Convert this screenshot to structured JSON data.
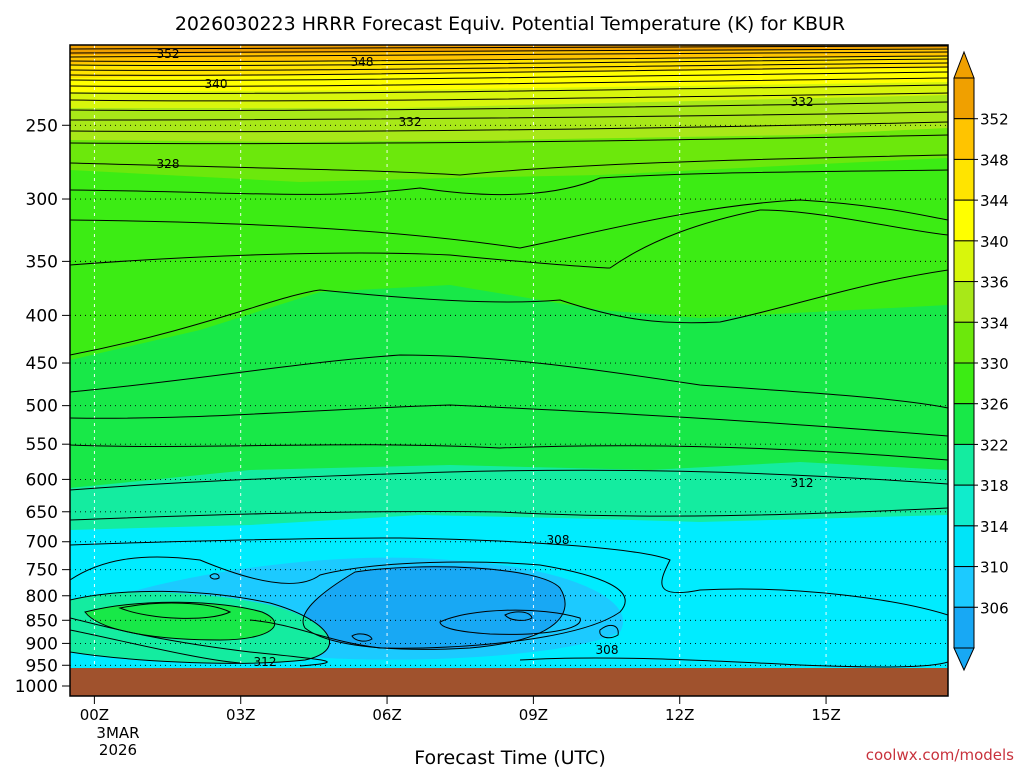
{
  "chart_data": {
    "type": "heatmap",
    "title": "2026030223 HRRR Forecast Equiv. Potential Temperature (K) for KBUR",
    "xlabel": "Forecast Time (UTC)",
    "ylabel": "",
    "x_ticks": [
      "00Z",
      "03Z",
      "06Z",
      "09Z",
      "12Z",
      "15Z"
    ],
    "x_tick_hours": [
      0,
      3,
      6,
      9,
      12,
      15
    ],
    "xlim": [
      -0.5,
      17.5
    ],
    "date_line1": "3MAR",
    "date_line2": "2026",
    "y_ticks": [
      250,
      300,
      350,
      400,
      450,
      500,
      550,
      600,
      650,
      700,
      750,
      800,
      850,
      900,
      950,
      1000
    ],
    "ylim": [
      1025,
      205
    ],
    "y_scale": "log-pressure",
    "surface_pressure": 975,
    "grid": true,
    "colorbar": {
      "labels": [
        "352",
        "348",
        "344",
        "340",
        "336",
        "334",
        "330",
        "326",
        "322",
        "318",
        "314",
        "310",
        "306"
      ],
      "colors": [
        "#f0a000",
        "#ffc400",
        "#ffe400",
        "#ffff00",
        "#d8f60c",
        "#a8e818",
        "#6ce80c",
        "#3cec14",
        "#18e848",
        "#14eca0",
        "#10eccc",
        "#00e4f8",
        "#1ccaff",
        "#18a8f4"
      ]
    },
    "contour_labels": [
      "352",
      "348",
      "340",
      "332",
      "332",
      "328",
      "312",
      "308",
      "312",
      "308"
    ],
    "levels_hpa": [
      250,
      300,
      350,
      400,
      450,
      500,
      550,
      600,
      650,
      700,
      750,
      800,
      850,
      900,
      950
    ],
    "profile_at_00Z_K": [
      333,
      328,
      326,
      324,
      322,
      321,
      320,
      318,
      316,
      313,
      311,
      311,
      312,
      312,
      312
    ]
  },
  "credit": "coolwx.com/models"
}
